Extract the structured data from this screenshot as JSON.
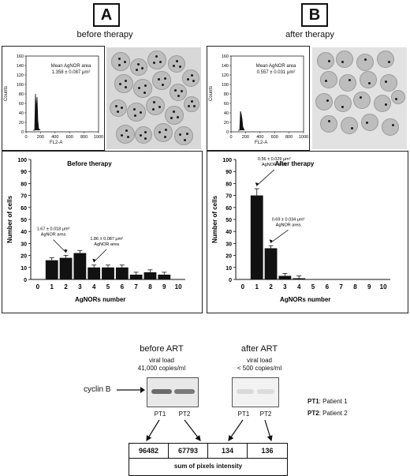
{
  "panels": {
    "a": {
      "letter": "A",
      "subtitle": "before therapy"
    },
    "b": {
      "letter": "B",
      "subtitle": "after therapy"
    }
  },
  "flow_histograms": {
    "a": {
      "annotation_line1": "Mean AgNOR area",
      "annotation_line2": "1.358 ± 0.087 μm²",
      "ylabel": "Counts",
      "xlabel": "FL2-A",
      "yticks": [
        "0",
        "20",
        "40",
        "60",
        "80",
        "100",
        "120",
        "140",
        "160"
      ],
      "xticks": [
        "0",
        "200",
        "400",
        "600",
        "800",
        "1000"
      ]
    },
    "b": {
      "annotation_line1": "Mean AgNOR area",
      "annotation_line2": "0.557 ± 0.031 μm²",
      "ylabel": "Counts",
      "xlabel": "FL2-A",
      "yticks": [
        "0",
        "20",
        "40",
        "60",
        "80",
        "100",
        "120",
        "140",
        "160"
      ],
      "xticks": [
        "0",
        "200",
        "400",
        "600",
        "800",
        "1000"
      ]
    }
  },
  "chart_data": [
    {
      "type": "bar",
      "title": "Before therapy",
      "xlabel": "AgNORs number",
      "ylabel": "Number of cells",
      "categories": [
        "0",
        "1",
        "2",
        "3",
        "4",
        "5",
        "6",
        "7",
        "8",
        "9",
        "10"
      ],
      "values": [
        0,
        16,
        18,
        22,
        10,
        10,
        10,
        4,
        6,
        4,
        0
      ],
      "ylim": [
        0,
        100
      ],
      "yticks": [
        "0",
        "10",
        "20",
        "30",
        "40",
        "50",
        "60",
        "70",
        "80",
        "90",
        "100"
      ],
      "annotations": [
        {
          "line1": "1.67 ± 0.018 μm²",
          "line2": "AgNOR area",
          "category": "2"
        },
        {
          "line1": "1.86 ± 0.087 μm²",
          "line2": "AgNOR area",
          "category": "4"
        }
      ]
    },
    {
      "type": "bar",
      "title": "After therapy",
      "xlabel": "AgNORs number",
      "ylabel": "Number of cells",
      "categories": [
        "0",
        "1",
        "2",
        "3",
        "4",
        "5",
        "6",
        "7",
        "8",
        "9",
        "10"
      ],
      "values": [
        0,
        70,
        26,
        3,
        1,
        0,
        0,
        0,
        0,
        0,
        0
      ],
      "ylim": [
        0,
        100
      ],
      "yticks": [
        "0",
        "10",
        "20",
        "30",
        "40",
        "50",
        "60",
        "70",
        "80",
        "90",
        "100"
      ],
      "annotations": [
        {
          "line1": "0.56 ± 0.029 μm²",
          "line2": "AgNOR area",
          "category": "1"
        },
        {
          "line1": "0.69 ± 0.034 μm²",
          "line2": "AgNOR area",
          "category": "2"
        }
      ]
    }
  ],
  "blot": {
    "before": {
      "title": "before ART",
      "load_line1": "viral load",
      "load_line2": "41,000 copies/ml"
    },
    "after": {
      "title": "after ART",
      "load_line1": "viral load",
      "load_line2": "< 500 copies/ml"
    },
    "protein_label": "cyclin B",
    "lanes": [
      "PT1",
      "PT2",
      "PT1",
      "PT2"
    ],
    "legend": [
      {
        "code": "PT1",
        "desc": ": Patient 1"
      },
      {
        "code": "PT2",
        "desc": ": Patient 2"
      }
    ],
    "intensities": [
      "96482",
      "67793",
      "134",
      "136"
    ],
    "intensity_label": "sum of pixels intensity"
  }
}
